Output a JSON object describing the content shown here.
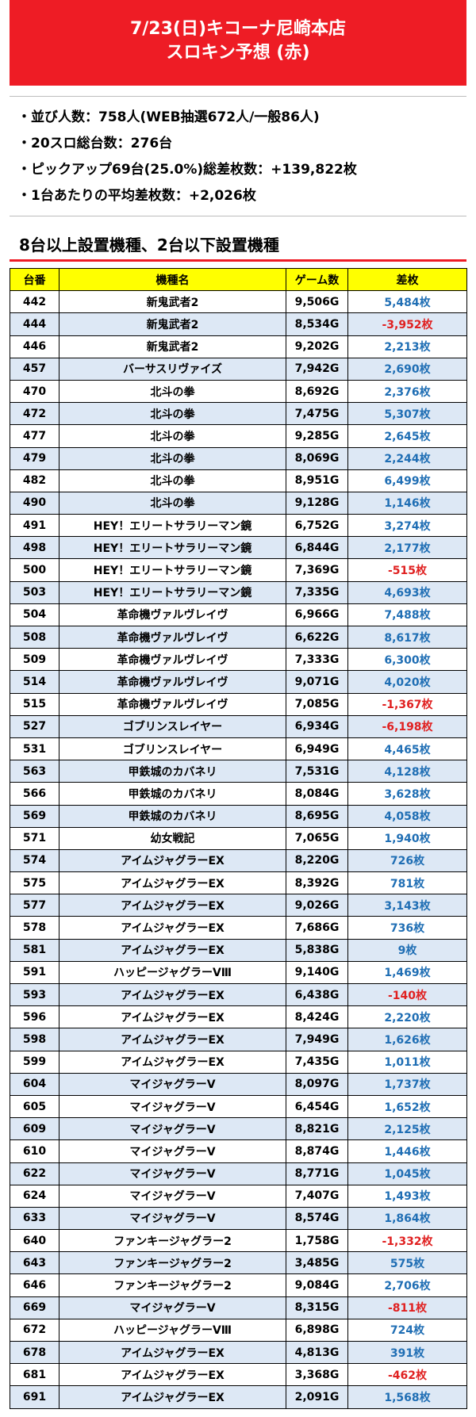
{
  "header": {
    "line1": "7/23(日)キコーナ尼崎本店",
    "line2": "スロキン予想 (赤)"
  },
  "info": [
    "並び人数：758人(WEB抽選672人/一般86人)",
    "20スロ総台数：276台",
    "ピックアップ69台(25.0%)総差枚数：+139,822枚",
    "1台あたりの平均差枚数：+2,026枚"
  ],
  "section_title": "8台以上設置機種、2台以下設置機種",
  "colors": {
    "accent_red": "#ee1c25",
    "header_yellow": "#ffff00",
    "positive_blue": "#1f6eb4",
    "negative_red": "#e02020",
    "row_alt": "#dde8f5"
  },
  "table": {
    "headers": [
      "台番",
      "機種名",
      "ゲーム数",
      "差枚"
    ],
    "rows": [
      {
        "no": "442",
        "name": "新鬼武者2",
        "games": "9,506G",
        "diff": "5,484枚",
        "neg": false
      },
      {
        "no": "444",
        "name": "新鬼武者2",
        "games": "8,534G",
        "diff": "-3,952枚",
        "neg": true
      },
      {
        "no": "446",
        "name": "新鬼武者2",
        "games": "9,202G",
        "diff": "2,213枚",
        "neg": false
      },
      {
        "no": "457",
        "name": "バーサスリヴァイズ",
        "games": "7,942G",
        "diff": "2,690枚",
        "neg": false
      },
      {
        "no": "470",
        "name": "北斗の拳",
        "games": "8,692G",
        "diff": "2,376枚",
        "neg": false
      },
      {
        "no": "472",
        "name": "北斗の拳",
        "games": "7,475G",
        "diff": "5,307枚",
        "neg": false
      },
      {
        "no": "477",
        "name": "北斗の拳",
        "games": "9,285G",
        "diff": "2,645枚",
        "neg": false
      },
      {
        "no": "479",
        "name": "北斗の拳",
        "games": "8,069G",
        "diff": "2,244枚",
        "neg": false
      },
      {
        "no": "482",
        "name": "北斗の拳",
        "games": "8,951G",
        "diff": "6,499枚",
        "neg": false
      },
      {
        "no": "490",
        "name": "北斗の拳",
        "games": "9,128G",
        "diff": "1,146枚",
        "neg": false
      },
      {
        "no": "491",
        "name": "HEY！エリートサラリーマン鏡",
        "games": "6,752G",
        "diff": "3,274枚",
        "neg": false
      },
      {
        "no": "498",
        "name": "HEY！エリートサラリーマン鏡",
        "games": "6,844G",
        "diff": "2,177枚",
        "neg": false
      },
      {
        "no": "500",
        "name": "HEY！エリートサラリーマン鏡",
        "games": "7,369G",
        "diff": "-515枚",
        "neg": true
      },
      {
        "no": "503",
        "name": "HEY！エリートサラリーマン鏡",
        "games": "7,335G",
        "diff": "4,693枚",
        "neg": false
      },
      {
        "no": "504",
        "name": "革命機ヴァルヴレイヴ",
        "games": "6,966G",
        "diff": "7,488枚",
        "neg": false
      },
      {
        "no": "508",
        "name": "革命機ヴァルヴレイヴ",
        "games": "6,622G",
        "diff": "8,617枚",
        "neg": false
      },
      {
        "no": "509",
        "name": "革命機ヴァルヴレイヴ",
        "games": "7,333G",
        "diff": "6,300枚",
        "neg": false
      },
      {
        "no": "514",
        "name": "革命機ヴァルヴレイヴ",
        "games": "9,071G",
        "diff": "4,020枚",
        "neg": false
      },
      {
        "no": "515",
        "name": "革命機ヴァルヴレイヴ",
        "games": "7,085G",
        "diff": "-1,367枚",
        "neg": true
      },
      {
        "no": "527",
        "name": "ゴブリンスレイヤー",
        "games": "6,934G",
        "diff": "-6,198枚",
        "neg": true
      },
      {
        "no": "531",
        "name": "ゴブリンスレイヤー",
        "games": "6,949G",
        "diff": "4,465枚",
        "neg": false
      },
      {
        "no": "563",
        "name": "甲鉄城のカバネリ",
        "games": "7,531G",
        "diff": "4,128枚",
        "neg": false
      },
      {
        "no": "566",
        "name": "甲鉄城のカバネリ",
        "games": "8,084G",
        "diff": "3,628枚",
        "neg": false
      },
      {
        "no": "569",
        "name": "甲鉄城のカバネリ",
        "games": "8,695G",
        "diff": "4,058枚",
        "neg": false
      },
      {
        "no": "571",
        "name": "幼女戦記",
        "games": "7,065G",
        "diff": "1,940枚",
        "neg": false
      },
      {
        "no": "574",
        "name": "アイムジャグラーEX",
        "games": "8,220G",
        "diff": "726枚",
        "neg": false
      },
      {
        "no": "575",
        "name": "アイムジャグラーEX",
        "games": "8,392G",
        "diff": "781枚",
        "neg": false
      },
      {
        "no": "577",
        "name": "アイムジャグラーEX",
        "games": "9,026G",
        "diff": "3,143枚",
        "neg": false
      },
      {
        "no": "578",
        "name": "アイムジャグラーEX",
        "games": "7,686G",
        "diff": "736枚",
        "neg": false
      },
      {
        "no": "581",
        "name": "アイムジャグラーEX",
        "games": "5,838G",
        "diff": "9枚",
        "neg": false
      },
      {
        "no": "591",
        "name": "ハッピージャグラーVⅢ",
        "games": "9,140G",
        "diff": "1,469枚",
        "neg": false
      },
      {
        "no": "593",
        "name": "アイムジャグラーEX",
        "games": "6,438G",
        "diff": "-140枚",
        "neg": true
      },
      {
        "no": "596",
        "name": "アイムジャグラーEX",
        "games": "8,424G",
        "diff": "2,220枚",
        "neg": false
      },
      {
        "no": "598",
        "name": "アイムジャグラーEX",
        "games": "7,949G",
        "diff": "1,626枚",
        "neg": false
      },
      {
        "no": "599",
        "name": "アイムジャグラーEX",
        "games": "7,435G",
        "diff": "1,011枚",
        "neg": false
      },
      {
        "no": "604",
        "name": "マイジャグラーV",
        "games": "8,097G",
        "diff": "1,737枚",
        "neg": false
      },
      {
        "no": "605",
        "name": "マイジャグラーV",
        "games": "6,454G",
        "diff": "1,652枚",
        "neg": false
      },
      {
        "no": "609",
        "name": "マイジャグラーV",
        "games": "8,821G",
        "diff": "2,125枚",
        "neg": false
      },
      {
        "no": "610",
        "name": "マイジャグラーV",
        "games": "8,874G",
        "diff": "1,446枚",
        "neg": false
      },
      {
        "no": "622",
        "name": "マイジャグラーV",
        "games": "8,771G",
        "diff": "1,045枚",
        "neg": false
      },
      {
        "no": "624",
        "name": "マイジャグラーV",
        "games": "7,407G",
        "diff": "1,493枚",
        "neg": false
      },
      {
        "no": "633",
        "name": "マイジャグラーV",
        "games": "8,574G",
        "diff": "1,864枚",
        "neg": false
      },
      {
        "no": "640",
        "name": "ファンキージャグラー2",
        "games": "1,758G",
        "diff": "-1,332枚",
        "neg": true
      },
      {
        "no": "643",
        "name": "ファンキージャグラー2",
        "games": "3,485G",
        "diff": "575枚",
        "neg": false
      },
      {
        "no": "646",
        "name": "ファンキージャグラー2",
        "games": "9,084G",
        "diff": "2,706枚",
        "neg": false
      },
      {
        "no": "669",
        "name": "マイジャグラーV",
        "games": "8,315G",
        "diff": "-811枚",
        "neg": true
      },
      {
        "no": "672",
        "name": "ハッピージャグラーVⅢ",
        "games": "6,898G",
        "diff": "724枚",
        "neg": false
      },
      {
        "no": "678",
        "name": "アイムジャグラーEX",
        "games": "4,813G",
        "diff": "391枚",
        "neg": false
      },
      {
        "no": "681",
        "name": "アイムジャグラーEX",
        "games": "3,368G",
        "diff": "-462枚",
        "neg": true
      },
      {
        "no": "691",
        "name": "アイムジャグラーEX",
        "games": "2,091G",
        "diff": "1,568枚",
        "neg": false
      }
    ]
  }
}
